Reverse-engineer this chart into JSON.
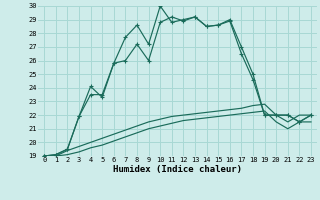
{
  "xlabel": "Humidex (Indice chaleur)",
  "background_color": "#ceecea",
  "grid_color": "#a8d8d4",
  "line_color": "#1a6b5a",
  "xlim": [
    -0.5,
    23.5
  ],
  "ylim": [
    19,
    30
  ],
  "xticks": [
    0,
    1,
    2,
    3,
    4,
    5,
    6,
    7,
    8,
    9,
    10,
    11,
    12,
    13,
    14,
    15,
    16,
    17,
    18,
    19,
    20,
    21,
    22,
    23
  ],
  "yticks": [
    19,
    20,
    21,
    22,
    23,
    24,
    25,
    26,
    27,
    28,
    29,
    30
  ],
  "series1_x": [
    0,
    1,
    2,
    3,
    4,
    5,
    6,
    7,
    8,
    9,
    10,
    11,
    12,
    13,
    14,
    15,
    16,
    17,
    18,
    19,
    20,
    21,
    22,
    23
  ],
  "series1_y": [
    19.0,
    19.1,
    19.5,
    21.9,
    24.1,
    23.3,
    25.8,
    27.7,
    28.6,
    27.2,
    30.0,
    28.8,
    29.0,
    29.2,
    28.5,
    28.6,
    29.0,
    27.0,
    25.0,
    22.0,
    22.0,
    22.0,
    21.5,
    22.0
  ],
  "series2_x": [
    0,
    1,
    2,
    3,
    4,
    5,
    6,
    7,
    8,
    9,
    10,
    11,
    12,
    13,
    14,
    15,
    16,
    17,
    18,
    19,
    20,
    21,
    22,
    23
  ],
  "series2_y": [
    19.0,
    19.1,
    19.5,
    21.9,
    23.5,
    23.5,
    25.8,
    26.0,
    27.2,
    26.0,
    28.8,
    29.2,
    28.9,
    29.2,
    28.5,
    28.6,
    28.9,
    26.5,
    24.6,
    22.0,
    22.0,
    22.0,
    21.5,
    22.0
  ],
  "series3_x": [
    0,
    1,
    2,
    3,
    4,
    5,
    6,
    7,
    8,
    9,
    10,
    11,
    12,
    13,
    14,
    15,
    16,
    17,
    18,
    19,
    20,
    21,
    22,
    23
  ],
  "series3_y": [
    19.0,
    19.0,
    19.4,
    19.7,
    20.0,
    20.3,
    20.6,
    20.9,
    21.2,
    21.5,
    21.7,
    21.9,
    22.0,
    22.1,
    22.2,
    22.3,
    22.4,
    22.5,
    22.7,
    22.8,
    22.0,
    21.5,
    22.0,
    22.0
  ],
  "series4_x": [
    0,
    1,
    2,
    3,
    4,
    5,
    6,
    7,
    8,
    9,
    10,
    11,
    12,
    13,
    14,
    15,
    16,
    17,
    18,
    19,
    20,
    21,
    22,
    23
  ],
  "series4_y": [
    19.0,
    19.0,
    19.1,
    19.3,
    19.6,
    19.8,
    20.1,
    20.4,
    20.7,
    21.0,
    21.2,
    21.4,
    21.6,
    21.7,
    21.8,
    21.9,
    22.0,
    22.1,
    22.2,
    22.3,
    21.5,
    21.0,
    21.5,
    21.5
  ]
}
